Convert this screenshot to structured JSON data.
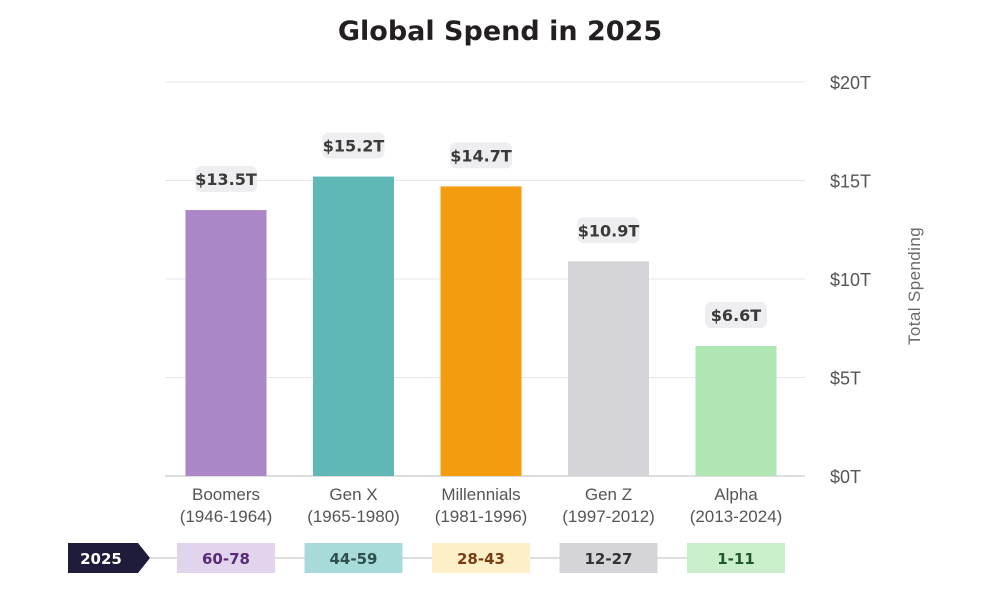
{
  "chart_data": {
    "type": "bar",
    "title": "Global Spend in 2025",
    "ylabel": "Total Spending",
    "ylim": [
      0,
      20
    ],
    "yticks": [
      0,
      5,
      10,
      15,
      20
    ],
    "ytick_labels": [
      "$0T",
      "$5T",
      "$10T",
      "$15T",
      "$20T"
    ],
    "grid": true,
    "y_axis_side": "right",
    "categories": [
      {
        "name": "Boomers",
        "years": "(1946-1964)"
      },
      {
        "name": "Gen X",
        "years": "(1965-1980)"
      },
      {
        "name": "Millennials",
        "years": "(1981-1996)"
      },
      {
        "name": "Gen Z",
        "years": "(1997-2012)"
      },
      {
        "name": "Alpha",
        "years": "(2013-2024)"
      }
    ],
    "values": [
      13.5,
      15.2,
      14.7,
      10.9,
      6.6
    ],
    "data_labels": [
      "$13.5T",
      "$15.2T",
      "$14.7T",
      "$10.9T",
      "$6.6T"
    ],
    "colors": [
      "#ab87c8",
      "#5fb8b6",
      "#f39c0f",
      "#d5d4d9",
      "#afe6b4"
    ],
    "age_row": {
      "year_label": "2025",
      "year_badge_color": "#1f1b3a",
      "ages": [
        "60-78",
        "44-59",
        "28-43",
        "12-27",
        "1-11"
      ],
      "age_bg_colors": [
        "#e2d4ec",
        "#a7dbd9",
        "#fdf0c8",
        "#d5d4d9",
        "#c9efcb"
      ],
      "age_text_colors": [
        "#5a2a7a",
        "#2f4f4f",
        "#7a3b10",
        "#333333",
        "#1f5a2a"
      ]
    }
  }
}
